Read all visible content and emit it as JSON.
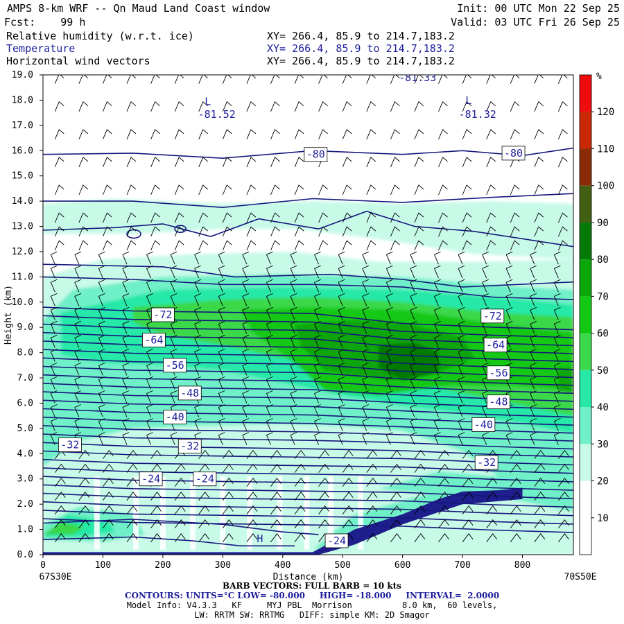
{
  "header": {
    "title": "AMPS 8-km WRF -- Qn Maud Land Coast window",
    "init": "Init: 00 UTC Mon 22 Sep 25",
    "fcst": "Fcst:    99 h",
    "valid": "Valid: 03 UTC Fri 26 Sep 25",
    "fields": [
      {
        "name": "Relative humidity (w.r.t. ice)",
        "xy": "XY= 266.4, 85.9 to 214.7,183.2"
      },
      {
        "name": "Temperature",
        "xy": "XY= 266.4, 85.9 to 214.7,183.2"
      },
      {
        "name": "Horizontal wind vectors",
        "xy": "XY= 266.4, 85.9 to 214.7,183.2"
      }
    ]
  },
  "chart_data": {
    "type": "contour_cross_section",
    "xlabel": "Distance (km)",
    "ylabel": "Height (km)",
    "xlim": [
      0,
      885
    ],
    "ylim": [
      0,
      19
    ],
    "x_ticks": [
      0,
      100,
      200,
      300,
      400,
      500,
      600,
      700,
      800
    ],
    "y_ticks": [
      "0.0",
      "1.0",
      "2.0",
      "3.0",
      "4.0",
      "5.0",
      "6.0",
      "7.0",
      "8.0",
      "9.0",
      "10.0",
      "11.0",
      "12.0",
      "13.0",
      "14.0",
      "15.0",
      "16.0",
      "17.0",
      "18.0",
      "19.0"
    ],
    "left_endpoint": "67S30E",
    "right_endpoint": "70S50E",
    "colorbar": {
      "unit": "%",
      "labels": [
        10,
        20,
        30,
        40,
        50,
        60,
        70,
        80,
        90,
        100,
        110,
        120
      ],
      "colors": [
        "#ffffff",
        "#ffffff",
        "#ffffff",
        "#c8fae8",
        "#6ff0c8",
        "#28e8a8",
        "#3ad84a",
        "#12c812",
        "#0aa60a",
        "#067a06",
        "#426012",
        "#8a2a06",
        "#c82806",
        "#ee0c0c"
      ]
    },
    "temperature_labels": [
      {
        "x": 455,
        "h": 15.85,
        "v": "-80"
      },
      {
        "x": 785,
        "h": 15.9,
        "v": "-80"
      },
      {
        "x": 200,
        "h": 9.5,
        "v": "-72"
      },
      {
        "x": 750,
        "h": 9.45,
        "v": "-72"
      },
      {
        "x": 185,
        "h": 8.5,
        "v": "-64"
      },
      {
        "x": 755,
        "h": 8.3,
        "v": "-64"
      },
      {
        "x": 220,
        "h": 7.5,
        "v": "-56"
      },
      {
        "x": 760,
        "h": 7.2,
        "v": "-56"
      },
      {
        "x": 245,
        "h": 6.4,
        "v": "-48"
      },
      {
        "x": 760,
        "h": 6.05,
        "v": "-48"
      },
      {
        "x": 220,
        "h": 5.45,
        "v": "-40"
      },
      {
        "x": 735,
        "h": 5.15,
        "v": "-40"
      },
      {
        "x": 45,
        "h": 4.35,
        "v": "-32"
      },
      {
        "x": 245,
        "h": 4.3,
        "v": "-32"
      },
      {
        "x": 740,
        "h": 3.65,
        "v": "-32"
      },
      {
        "x": 180,
        "h": 3.0,
        "v": "-24"
      },
      {
        "x": 270,
        "h": 3.0,
        "v": "-24"
      },
      {
        "x": 490,
        "h": 0.55,
        "v": "-24"
      }
    ],
    "extrema": [
      {
        "x": 275,
        "h": 17.8,
        "v": "L"
      },
      {
        "x": 290,
        "h": 17.3,
        "v": "-81.52"
      },
      {
        "x": 710,
        "h": 17.85,
        "v": "L"
      },
      {
        "x": 725,
        "h": 17.3,
        "v": "-81.32"
      },
      {
        "x": 625,
        "h": 18.75,
        "v": "-81.33"
      },
      {
        "x": 362,
        "h": 0.5,
        "v": "H"
      }
    ],
    "wind_barbs": "full barb = 10 kts"
  },
  "footer": {
    "barb": "BARB VECTORS: FULL BARB = 10 kts",
    "contours": "CONTOURS: UNITS=°C LOW= -80.000     HIGH= -18.000     INTERVAL=  2.0000",
    "model": "Model Info: V4.3.3   KF     MYJ PBL  Morrison          8.0 km,  60 levels,",
    "physics": "LW: RRTM SW: RRTMG   DIFF: simple KM: 2D Smagor"
  }
}
